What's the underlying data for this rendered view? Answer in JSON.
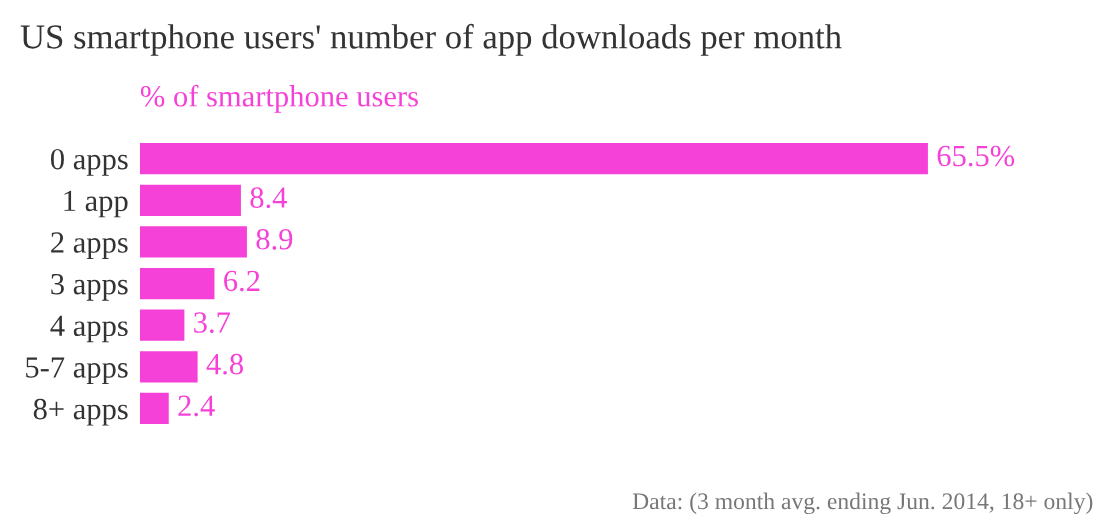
{
  "chart_data": {
    "type": "bar",
    "orientation": "horizontal",
    "title": "US smartphone users' number of app downloads per month",
    "subtitle": "% of smartphone users",
    "categories": [
      "0 apps",
      "1 app",
      "2 apps",
      "3 apps",
      "4 apps",
      "5-7 apps",
      "8+ apps"
    ],
    "values": [
      65.5,
      8.4,
      8.9,
      6.2,
      3.7,
      4.8,
      2.4
    ],
    "value_labels": [
      "65.5%",
      "8.4",
      "8.9",
      "6.2",
      "3.7",
      "4.8",
      "2.4"
    ],
    "color": "#f541d8",
    "annotations": [
      "Data: (3 month avg. ending Jun. 2014, 18+ only)"
    ]
  }
}
